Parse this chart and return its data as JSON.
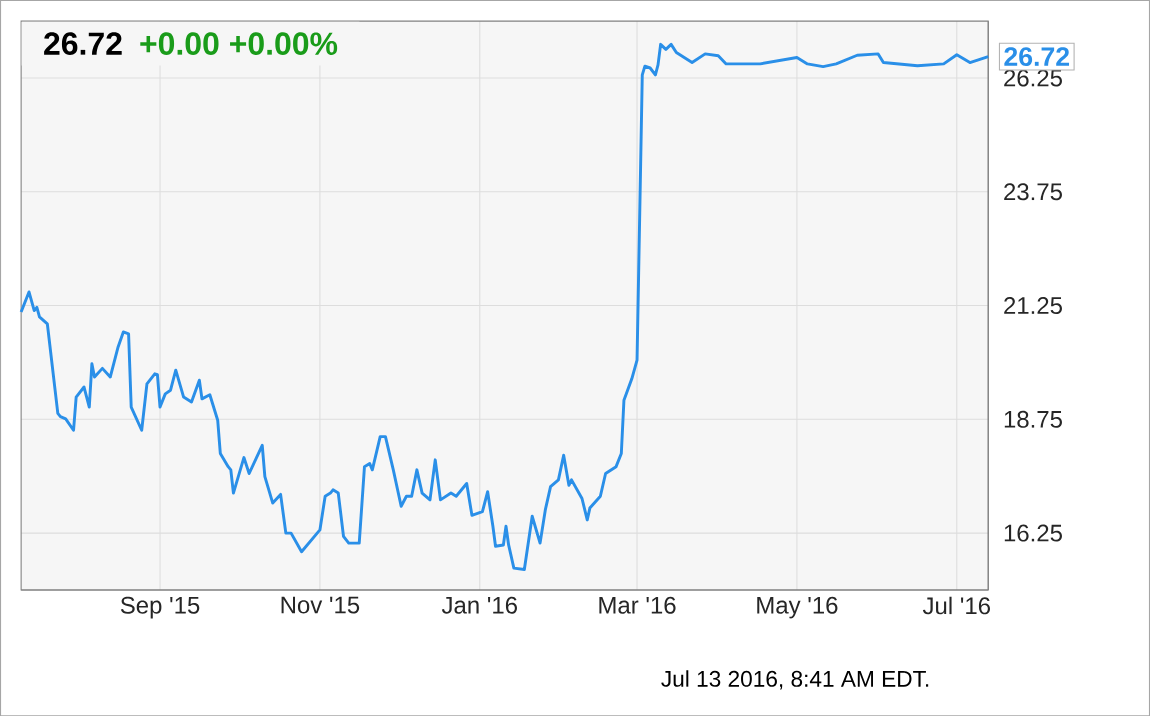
{
  "chart_data": {
    "type": "line",
    "title": "26.72",
    "subtitle": "+0.00 +0.00%",
    "annotations": [
      {
        "text": "26.72",
        "x": "2016-07-13",
        "y": 26.72
      },
      "Jul 13 2016, 8:41 AM EDT."
    ],
    "x": [
      "2015-07-10",
      "2015-07-13",
      "2015-07-15",
      "2015-07-16",
      "2015-07-17",
      "2015-07-20",
      "2015-07-24",
      "2015-07-25",
      "2015-07-27",
      "2015-07-30",
      "2015-07-31",
      "2015-08-03",
      "2015-08-05",
      "2015-08-06",
      "2015-08-07",
      "2015-08-10",
      "2015-08-13",
      "2015-08-16",
      "2015-08-18",
      "2015-08-20",
      "2015-08-21",
      "2015-08-25",
      "2015-08-27",
      "2015-08-30",
      "2015-08-31",
      "2015-09-01",
      "2015-09-03",
      "2015-09-05",
      "2015-09-07",
      "2015-09-10",
      "2015-09-13",
      "2015-09-16",
      "2015-09-17",
      "2015-09-20",
      "2015-09-23",
      "2015-09-24",
      "2015-09-27",
      "2015-09-28",
      "2015-09-29",
      "2015-10-03",
      "2015-10-05",
      "2015-10-10",
      "2015-10-11",
      "2015-10-14",
      "2015-10-17",
      "2015-10-19",
      "2015-10-21",
      "2015-10-25",
      "2015-11-01",
      "2015-11-03",
      "2015-11-05",
      "2015-11-06",
      "2015-11-08",
      "2015-11-10",
      "2015-11-12",
      "2015-11-16",
      "2015-11-18",
      "2015-11-20",
      "2015-11-21",
      "2015-11-24",
      "2015-11-26",
      "2015-11-29",
      "2015-12-02",
      "2015-12-04",
      "2015-12-06",
      "2015-12-08",
      "2015-12-10",
      "2015-12-13",
      "2015-12-15",
      "2015-12-17",
      "2015-12-21",
      "2015-12-23",
      "2015-12-27",
      "2015-12-29",
      "2016-01-02",
      "2016-01-04",
      "2016-01-06",
      "2016-01-07",
      "2016-01-10",
      "2016-01-11",
      "2016-01-12",
      "2016-01-14",
      "2016-01-18",
      "2016-01-21",
      "2016-01-24",
      "2016-01-26",
      "2016-01-28",
      "2016-01-31",
      "2016-02-02",
      "2016-02-04",
      "2016-02-05",
      "2016-02-09",
      "2016-02-11",
      "2016-02-12",
      "2016-02-16",
      "2016-02-18",
      "2016-02-22",
      "2016-02-24",
      "2016-02-25",
      "2016-02-28",
      "2016-03-01",
      "2016-03-03",
      "2016-03-04",
      "2016-03-06",
      "2016-03-08",
      "2016-03-09",
      "2016-03-10",
      "2016-03-12",
      "2016-03-14",
      "2016-03-16",
      "2016-03-22",
      "2016-03-27",
      "2016-04-01",
      "2016-04-04",
      "2016-04-17",
      "2016-05-01",
      "2016-05-05",
      "2016-05-11",
      "2016-05-16",
      "2016-05-24",
      "2016-06-01",
      "2016-06-03",
      "2016-06-16",
      "2016-06-26",
      "2016-07-01",
      "2016-07-06",
      "2016-07-13"
    ],
    "series": [
      {
        "color": "#2a8fe8",
        "values": [
          21.11,
          21.55,
          21.14,
          21.21,
          21.0,
          20.85,
          18.88,
          18.81,
          18.76,
          18.51,
          19.24,
          19.46,
          19.02,
          19.97,
          19.68,
          19.87,
          19.68,
          20.34,
          20.67,
          20.63,
          19.02,
          18.51,
          19.53,
          19.75,
          19.73,
          19.02,
          19.31,
          19.39,
          19.83,
          19.24,
          19.13,
          19.61,
          19.2,
          19.29,
          18.73,
          18.0,
          17.71,
          17.64,
          17.13,
          17.91,
          17.56,
          18.18,
          17.49,
          16.91,
          17.1,
          16.25,
          16.25,
          15.84,
          16.32,
          17.06,
          17.13,
          17.2,
          17.13,
          16.18,
          16.03,
          16.03,
          17.71,
          17.78,
          17.64,
          18.37,
          18.37,
          17.64,
          16.84,
          17.06,
          17.06,
          17.64,
          17.13,
          16.98,
          17.86,
          16.98,
          17.13,
          17.06,
          17.34,
          16.64,
          16.72,
          17.16,
          16.4,
          15.96,
          15.99,
          16.4,
          15.99,
          15.48,
          15.45,
          16.62,
          16.03,
          16.76,
          17.27,
          17.42,
          17.96,
          17.3,
          17.42,
          17.01,
          16.54,
          16.8,
          17.06,
          17.56,
          17.71,
          18.0,
          19.17,
          19.64,
          20.05,
          26.32,
          26.51,
          26.47,
          26.32,
          26.54,
          26.99,
          26.88,
          26.99,
          26.81,
          26.59,
          26.78,
          26.74,
          26.56,
          26.56,
          26.7,
          26.56,
          26.5,
          26.56,
          26.75,
          26.78,
          26.59,
          26.52,
          26.56,
          26.76,
          26.59,
          26.72
        ]
      }
    ],
    "xlim": [
      "2015-07-10",
      "2016-07-13"
    ],
    "xticks": [
      {
        "value": "2015-09-01",
        "label": "Sep '15"
      },
      {
        "value": "2015-11-01",
        "label": "Nov '15"
      },
      {
        "value": "2016-01-01",
        "label": "Jan '16"
      },
      {
        "value": "2016-03-01",
        "label": "Mar '16"
      },
      {
        "value": "2016-05-01",
        "label": "May '16"
      },
      {
        "value": "2016-07-01",
        "label": "Jul '16"
      }
    ],
    "ylim": [
      15.0,
      27.5
    ],
    "yticks": [
      16.25,
      18.75,
      21.25,
      23.75,
      26.25
    ],
    "grid": true,
    "marker": "none",
    "line_style": "solid"
  }
}
